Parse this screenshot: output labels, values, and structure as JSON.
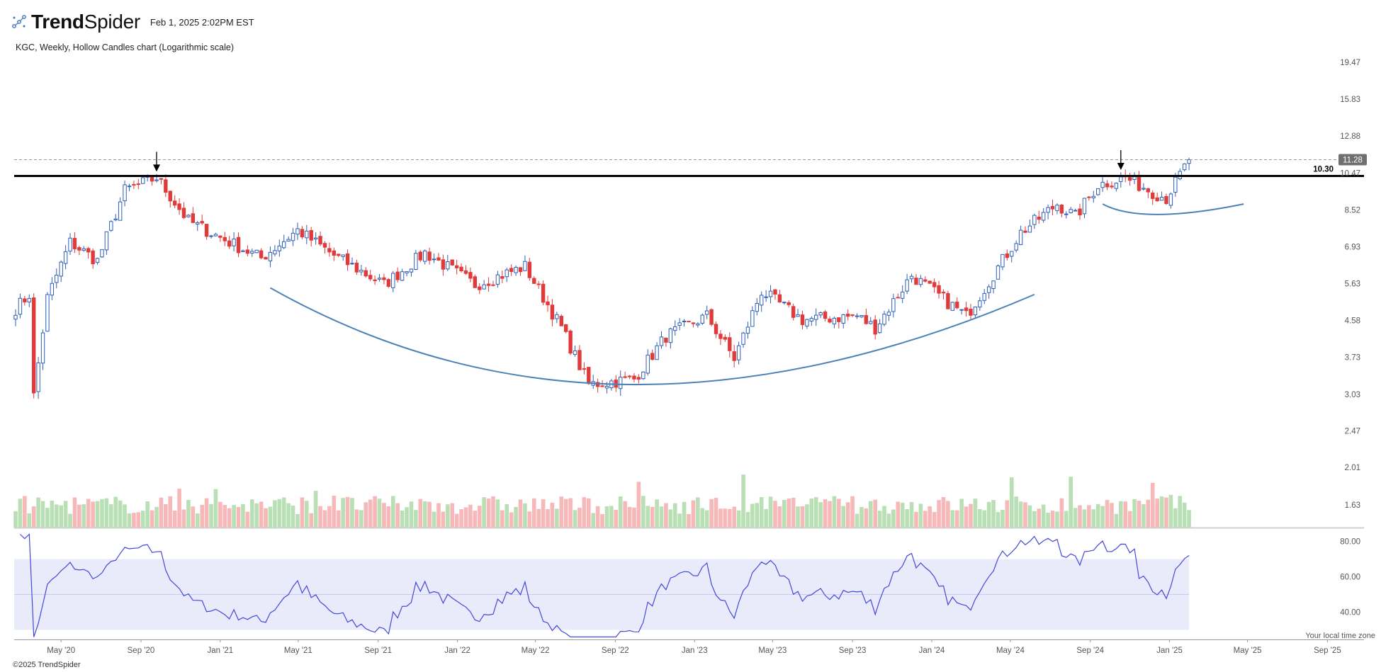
{
  "brand": {
    "logo_icon": "trendspider-logo-icon",
    "name_bold": "Trend",
    "name_light": "Spider"
  },
  "timestamp": "Feb 1, 2025 2:02PM EST",
  "chart_title": "KGC, Weekly, Hollow Candles chart (Logarithmic scale)",
  "copyright": "©2025 TrendSpider",
  "timezone_note": "Your local time zone",
  "colors": {
    "up": "#2f5fb8",
    "down": "#e03a3a",
    "vol_up": "#b9dfb5",
    "vol_down": "#f6b8b8",
    "rsi_line": "#4347d9",
    "rsi_band": "#e9ebfb",
    "arc": "#4c82b5",
    "support_line": "#000000",
    "price_tag": "#707070"
  },
  "chart_data": {
    "type": "candlestick",
    "symbol": "KGC",
    "interval": "Weekly",
    "style": "Hollow Candles",
    "scale": "log",
    "price_ticks": [
      19.47,
      15.83,
      12.88,
      10.47,
      8.52,
      6.93,
      5.63,
      4.58,
      3.73,
      3.03,
      2.47,
      2.01,
      1.63
    ],
    "price_ticks_label": [
      "19.47",
      "15.83",
      "12.88",
      "10.47",
      "8.52",
      "6.93",
      "5.63",
      "4.58",
      "3.73",
      "3.03",
      "2.47",
      "2.01",
      "1.63"
    ],
    "x_ticks": [
      "May '20",
      "Sep '20",
      "Jan '21",
      "May '21",
      "Sep '21",
      "Jan '22",
      "May '22",
      "Sep '22",
      "Jan '23",
      "May '23",
      "Sep '23",
      "Jan '24",
      "May '24",
      "Sep '24",
      "Jan '25",
      "May '25",
      "Sep '25"
    ],
    "x_start": "2020-02-21",
    "x_end": "2025-09-30",
    "last_bar": "2025-01-31",
    "current_price": 11.28,
    "current_price_label": "11.28",
    "support_level": 10.3,
    "support_label": "10.30",
    "anchors": [
      [
        "2020-02-21",
        4.9
      ],
      [
        "2020-03-13",
        5.3
      ],
      [
        "2020-03-20",
        3.0
      ],
      [
        "2020-04-10",
        5.2
      ],
      [
        "2020-05-15",
        7.1
      ],
      [
        "2020-06-26",
        6.4
      ],
      [
        "2020-08-07",
        9.5
      ],
      [
        "2020-09-25",
        10.2
      ],
      [
        "2020-11-13",
        8.0
      ],
      [
        "2021-01-08",
        7.2
      ],
      [
        "2021-03-05",
        6.5
      ],
      [
        "2021-04-30",
        7.6
      ],
      [
        "2021-06-25",
        6.6
      ],
      [
        "2021-09-10",
        5.6
      ],
      [
        "2021-11-12",
        6.7
      ],
      [
        "2022-01-28",
        5.6
      ],
      [
        "2022-04-15",
        6.2
      ],
      [
        "2022-06-10",
        4.4
      ],
      [
        "2022-07-22",
        3.2
      ],
      [
        "2022-09-30",
        3.3
      ],
      [
        "2022-11-18",
        4.2
      ],
      [
        "2023-01-20",
        4.7
      ],
      [
        "2023-03-03",
        3.7
      ],
      [
        "2023-04-14",
        5.4
      ],
      [
        "2023-06-16",
        4.6
      ],
      [
        "2023-09-08",
        4.7
      ],
      [
        "2023-10-06",
        4.4
      ],
      [
        "2023-12-01",
        5.9
      ],
      [
        "2024-02-23",
        4.7
      ],
      [
        "2024-05-17",
        7.5
      ],
      [
        "2024-07-12",
        8.8
      ],
      [
        "2024-08-09",
        8.2
      ],
      [
        "2024-09-13",
        9.8
      ],
      [
        "2024-10-25",
        10.2
      ],
      [
        "2024-12-13",
        9.3
      ],
      [
        "2024-12-27",
        9.1
      ],
      [
        "2025-01-31",
        11.28
      ]
    ],
    "markers": [
      {
        "type": "arrow-down",
        "date": "2020-09-25",
        "price": 10.55
      },
      {
        "type": "arrow-down",
        "date": "2024-10-18",
        "price": 10.65
      }
    ],
    "arcs": [
      {
        "pattern": "cup",
        "points": [
          [
            "2021-03-19",
            5.5
          ],
          [
            "2022-09-23",
            3.2
          ],
          [
            "2024-06-07",
            5.3
          ]
        ]
      },
      {
        "pattern": "handle",
        "points": [
          [
            "2024-09-20",
            8.8
          ],
          [
            "2024-12-13",
            8.3
          ],
          [
            "2025-04-25",
            8.8
          ]
        ]
      }
    ],
    "volume": {
      "note": "weekly volume histogram, green up / red down"
    },
    "rsi": {
      "ticks": [
        80,
        60,
        40
      ],
      "ticks_label": [
        "80.00",
        "60.00",
        "40.00"
      ],
      "band": [
        30,
        70
      ],
      "mid": 50,
      "range": [
        25,
        85
      ]
    }
  }
}
